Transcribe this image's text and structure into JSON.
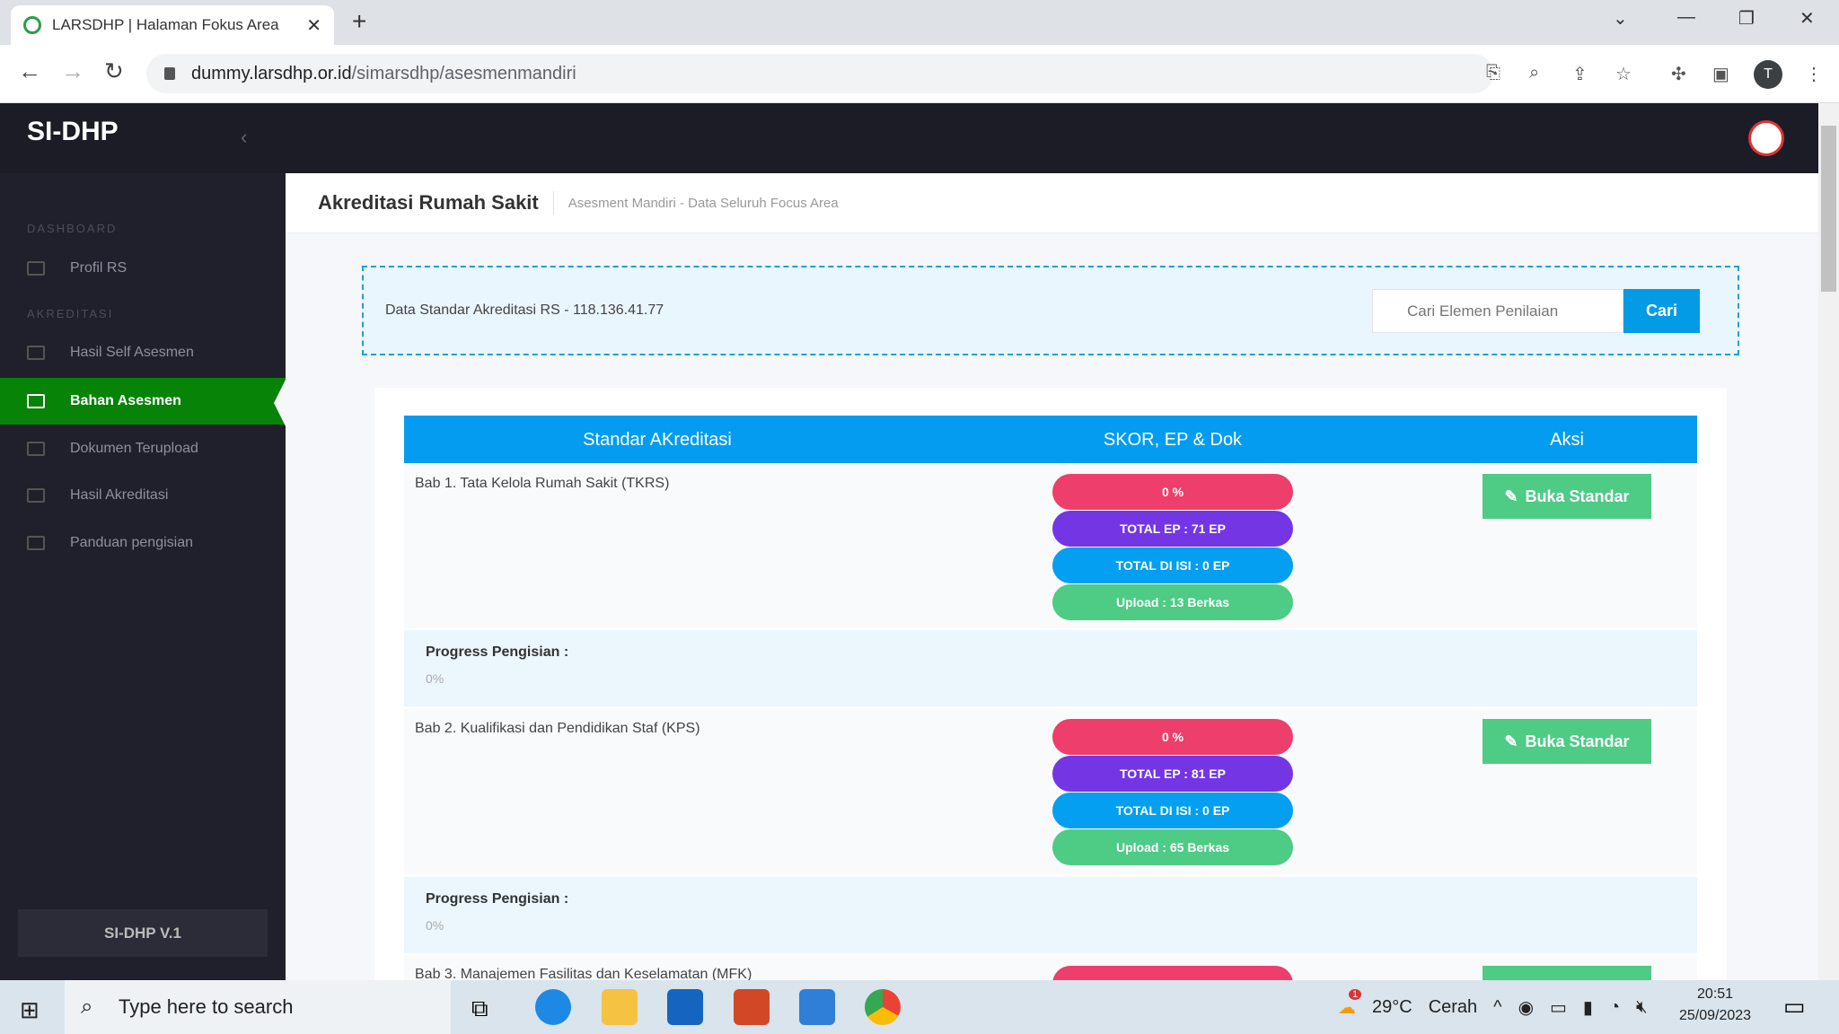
{
  "browser": {
    "tab_title": "LARSDHP | Halaman Fokus Area",
    "url_host": "dummy.larsdhp.or.id",
    "url_path": "/simarsdhp/asesmenmandiri",
    "profile_initial": "T"
  },
  "app": {
    "brand": "SI-DHP",
    "footer": "SI-DHP V.1"
  },
  "sidebar": {
    "sections": [
      "DASHBOARD",
      "AKREDITASI"
    ],
    "items": [
      {
        "label": "Profil RS",
        "icon": "id-card-icon"
      },
      {
        "label": "Hasil Self Asesmen",
        "icon": "window-icon"
      },
      {
        "label": "Bahan Asesmen",
        "icon": "edit-icon",
        "active": true
      },
      {
        "label": "Dokumen Terupload",
        "icon": "window-icon"
      },
      {
        "label": "Hasil Akreditasi",
        "icon": "file-icon"
      },
      {
        "label": "Panduan pengisian",
        "icon": "book-icon"
      }
    ]
  },
  "page": {
    "title": "Akreditasi Rumah Sakit",
    "breadcrumb": [
      "Asesment Mandiri",
      "Data Seluruh Focus Area"
    ],
    "breadcrumb_sep": "-"
  },
  "info": {
    "text": "Data Standar Akreditasi RS - 118.136.41.77",
    "search_placeholder": "Cari Elemen Penilaian",
    "search_button": "Cari"
  },
  "table": {
    "headers": [
      "Standar AKreditasi",
      "SKOR, EP & Dok",
      "Aksi"
    ],
    "rows": [
      {
        "bab": "Bab 1. Tata Kelola Rumah Sakit (TKRS)",
        "score": "0 %",
        "total_ep": "TOTAL EP : 71 EP",
        "total_diisi": "TOTAL DI ISI : 0 EP",
        "upload": "Upload : 13 Berkas",
        "action": "Buka Standar",
        "progress_label": "Progress Pengisian :",
        "progress": "0%"
      },
      {
        "bab": "Bab 2. Kualifikasi dan Pendidikan Staf (KPS)",
        "score": "0 %",
        "total_ep": "TOTAL EP : 81 EP",
        "total_diisi": "TOTAL DI ISI : 0 EP",
        "upload": "Upload : 65 Berkas",
        "action": "Buka Standar",
        "progress_label": "Progress Pengisian :",
        "progress": "0%"
      },
      {
        "bab": "Bab 3. Manajemen Fasilitas dan Keselamatan (MFK)"
      }
    ]
  },
  "colors": {
    "score": "#ee3e6b",
    "total_ep": "#7436e4",
    "total_diisi": "#049ff0",
    "upload": "#4ecb85",
    "active_nav": "#078307",
    "table_header": "#039cf0"
  },
  "taskbar": {
    "search_placeholder": "Type here to search",
    "weather_temp": "29°C",
    "weather_text": "Cerah",
    "weather_badge": "1",
    "time": "20:51",
    "date": "25/09/2023"
  }
}
